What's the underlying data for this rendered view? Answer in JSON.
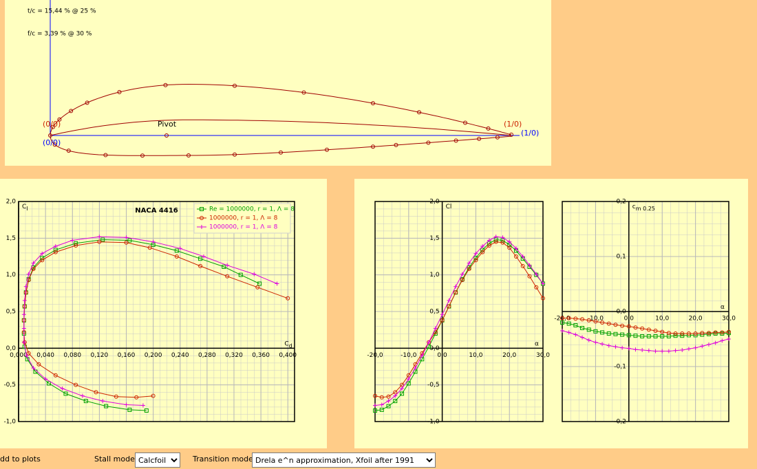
{
  "airfoil_panel": {
    "thickness_label": "t/c = 15,44 % @ 25 %",
    "camber_label": "f/c = 3,39 % @ 30 %",
    "leading_edge_label": "(0/0)",
    "leading_edge_label_2": "(0/0)",
    "trailing_edge_label": "(1/0)",
    "trailing_edge_label_2": "(1/0)",
    "pivot_label": "Pivot"
  },
  "chart_data": [
    {
      "type": "line",
      "title": "NACA 4416",
      "x_label": "C",
      "x_label_sub": "d",
      "y_label": "C",
      "y_label_sub": "l",
      "xlim": [
        0,
        0.41
      ],
      "ylim": [
        -1,
        2
      ],
      "xticks": [
        {
          "value": 0,
          "label": "0,000"
        },
        {
          "value": 0.04,
          "label": "0,040"
        },
        {
          "value": 0.08,
          "label": "0,080"
        },
        {
          "value": 0.12,
          "label": "0,120"
        },
        {
          "value": 0.16,
          "label": "0,160"
        },
        {
          "value": 0.2,
          "label": "0,200"
        },
        {
          "value": 0.24,
          "label": "0,240"
        },
        {
          "value": 0.28,
          "label": "0,280"
        },
        {
          "value": 0.32,
          "label": "0,320"
        },
        {
          "value": 0.36,
          "label": "0,360"
        },
        {
          "value": 0.4,
          "label": "0,400"
        }
      ],
      "yticks": [
        {
          "value": -1,
          "label": "-1,0"
        },
        {
          "value": -0.5,
          "label": "-0,5"
        },
        {
          "value": 0,
          "label": "0,0"
        },
        {
          "value": 0.5,
          "label": "0,5"
        },
        {
          "value": 1,
          "label": "1,0"
        },
        {
          "value": 1.5,
          "label": "1,5"
        },
        {
          "value": 2,
          "label": "2,0"
        }
      ],
      "grid": true,
      "legend": "upper right",
      "series": [
        {
          "name": "Re = 1000000, r = 1, Λ = 8",
          "color": "#00a000",
          "marker": "square",
          "x": [
            0.19,
            0.165,
            0.13,
            0.1,
            0.07,
            0.045,
            0.025,
            0.013,
            0.009,
            0.008,
            0.008,
            0.009,
            0.011,
            0.015,
            0.022,
            0.035,
            0.055,
            0.085,
            0.125,
            0.165,
            0.2,
            0.235,
            0.27,
            0.305,
            0.33,
            0.358
          ],
          "values": [
            -0.85,
            -0.84,
            -0.79,
            -0.72,
            -0.62,
            -0.48,
            -0.32,
            -0.15,
            0.02,
            0.2,
            0.38,
            0.57,
            0.76,
            0.94,
            1.1,
            1.23,
            1.34,
            1.43,
            1.48,
            1.47,
            1.41,
            1.33,
            1.22,
            1.11,
            1.0,
            0.88
          ]
        },
        {
          "name": "1000000, r = 1, Λ = 8",
          "color": "#cc2200",
          "marker": "circle",
          "x": [
            0.2,
            0.175,
            0.145,
            0.115,
            0.085,
            0.055,
            0.03,
            0.015,
            0.009,
            0.008,
            0.008,
            0.009,
            0.011,
            0.015,
            0.022,
            0.035,
            0.055,
            0.085,
            0.12,
            0.16,
            0.195,
            0.235,
            0.27,
            0.31,
            0.355,
            0.4
          ],
          "values": [
            -0.65,
            -0.67,
            -0.66,
            -0.6,
            -0.5,
            -0.37,
            -0.22,
            -0.07,
            0.08,
            0.22,
            0.38,
            0.57,
            0.76,
            0.93,
            1.08,
            1.2,
            1.31,
            1.4,
            1.45,
            1.44,
            1.37,
            1.25,
            1.12,
            0.98,
            0.83,
            0.68
          ]
        },
        {
          "name": "1000000, r = 1, Λ = 8",
          "color": "#dd00dd",
          "marker": "plus",
          "x": [
            0.185,
            0.16,
            0.125,
            0.095,
            0.065,
            0.04,
            0.022,
            0.012,
            0.008,
            0.008,
            0.008,
            0.009,
            0.011,
            0.015,
            0.022,
            0.035,
            0.055,
            0.08,
            0.12,
            0.16,
            0.2,
            0.24,
            0.275,
            0.31,
            0.35,
            0.384
          ],
          "values": [
            -0.78,
            -0.77,
            -0.72,
            -0.65,
            -0.55,
            -0.42,
            -0.27,
            -0.1,
            0.08,
            0.27,
            0.46,
            0.65,
            0.84,
            1.01,
            1.16,
            1.29,
            1.39,
            1.47,
            1.52,
            1.51,
            1.45,
            1.36,
            1.25,
            1.13,
            1.01,
            0.88
          ]
        }
      ]
    },
    {
      "type": "line",
      "x_label": "α",
      "y_label": "Cl",
      "xlim": [
        -20,
        30
      ],
      "ylim": [
        -1,
        2
      ],
      "xticks": [
        {
          "value": -20,
          "label": "-20,0"
        },
        {
          "value": -10,
          "label": "-10,0"
        },
        {
          "value": 0,
          "label": "0,0"
        },
        {
          "value": 10,
          "label": "10,0"
        },
        {
          "value": 20,
          "label": "20,0"
        },
        {
          "value": 30,
          "label": "30,0"
        }
      ],
      "yticks": [
        {
          "value": -1,
          "label": "-1,0"
        },
        {
          "value": -0.5,
          "label": "-0,5"
        },
        {
          "value": 0,
          "label": "0,0"
        },
        {
          "value": 0.5,
          "label": "0,5"
        },
        {
          "value": 1,
          "label": "1,0"
        },
        {
          "value": 1.5,
          "label": "1,5"
        },
        {
          "value": 2,
          "label": "2,0"
        }
      ],
      "grid": true,
      "x": [
        -20,
        -18,
        -16,
        -14,
        -12,
        -10,
        -8,
        -6,
        -4,
        -2,
        0,
        2,
        4,
        6,
        8,
        10,
        12,
        14,
        16,
        18,
        20,
        22,
        24,
        26,
        28,
        30
      ],
      "series": [
        {
          "color": "#00a000",
          "marker": "square",
          "values": [
            -0.85,
            -0.84,
            -0.79,
            -0.72,
            -0.62,
            -0.48,
            -0.32,
            -0.15,
            0.02,
            0.2,
            0.38,
            0.57,
            0.76,
            0.94,
            1.1,
            1.23,
            1.34,
            1.43,
            1.48,
            1.47,
            1.41,
            1.33,
            1.22,
            1.11,
            1.0,
            0.88
          ]
        },
        {
          "color": "#cc2200",
          "marker": "circle",
          "values": [
            -0.65,
            -0.67,
            -0.66,
            -0.6,
            -0.5,
            -0.37,
            -0.22,
            -0.07,
            0.08,
            0.22,
            0.38,
            0.57,
            0.76,
            0.93,
            1.08,
            1.2,
            1.31,
            1.4,
            1.45,
            1.44,
            1.37,
            1.25,
            1.12,
            0.98,
            0.83,
            0.68
          ]
        },
        {
          "color": "#dd00dd",
          "marker": "plus",
          "values": [
            -0.78,
            -0.77,
            -0.72,
            -0.65,
            -0.55,
            -0.42,
            -0.27,
            -0.1,
            0.08,
            0.27,
            0.46,
            0.65,
            0.84,
            1.01,
            1.16,
            1.29,
            1.39,
            1.47,
            1.52,
            1.51,
            1.45,
            1.36,
            1.25,
            1.13,
            1.01,
            0.88
          ]
        }
      ]
    },
    {
      "type": "line",
      "x_label": "α",
      "y_label": "c",
      "y_label_sub": "m 0.25",
      "xlim": [
        -20,
        30
      ],
      "ylim": [
        -0.2,
        0.2
      ],
      "xticks": [
        {
          "value": -20,
          "label": "-20,0"
        },
        {
          "value": -10,
          "label": "-10,0"
        },
        {
          "value": 0,
          "label": "0,0"
        },
        {
          "value": 10,
          "label": "10,0"
        },
        {
          "value": 20,
          "label": "20,0"
        },
        {
          "value": 30,
          "label": "30,0"
        }
      ],
      "yticks": [
        {
          "value": -0.2,
          "label": "-0,2"
        },
        {
          "value": -0.1,
          "label": "-0,1"
        },
        {
          "value": 0,
          "label": "0,0"
        },
        {
          "value": 0.1,
          "label": "0,1"
        },
        {
          "value": 0.2,
          "label": "0,2"
        }
      ],
      "grid": true,
      "x": [
        -20,
        -18,
        -16,
        -14,
        -12,
        -10,
        -8,
        -6,
        -4,
        -2,
        0,
        2,
        4,
        6,
        8,
        10,
        12,
        14,
        16,
        18,
        20,
        22,
        24,
        26,
        28,
        30
      ],
      "series": [
        {
          "color": "#00a000",
          "marker": "square",
          "values": [
            -0.02,
            -0.022,
            -0.025,
            -0.03,
            -0.033,
            -0.036,
            -0.038,
            -0.04,
            -0.041,
            -0.042,
            -0.043,
            -0.044,
            -0.045,
            -0.045,
            -0.045,
            -0.045,
            -0.045,
            -0.044,
            -0.044,
            -0.043,
            -0.043,
            -0.042,
            -0.041,
            -0.04,
            -0.04,
            -0.039
          ]
        },
        {
          "color": "#cc2200",
          "marker": "circle",
          "values": [
            -0.012,
            -0.012,
            -0.013,
            -0.014,
            -0.016,
            -0.018,
            -0.02,
            -0.022,
            -0.024,
            -0.026,
            -0.027,
            -0.029,
            -0.031,
            -0.033,
            -0.035,
            -0.037,
            -0.039,
            -0.04,
            -0.04,
            -0.04,
            -0.04,
            -0.039,
            -0.039,
            -0.038,
            -0.038,
            -0.037
          ]
        },
        {
          "color": "#dd00dd",
          "marker": "plus",
          "values": [
            -0.035,
            -0.038,
            -0.042,
            -0.047,
            -0.052,
            -0.056,
            -0.059,
            -0.062,
            -0.064,
            -0.066,
            -0.067,
            -0.069,
            -0.07,
            -0.071,
            -0.072,
            -0.072,
            -0.072,
            -0.071,
            -0.07,
            -0.068,
            -0.066,
            -0.063,
            -0.06,
            -0.057,
            -0.053,
            -0.05
          ]
        }
      ]
    }
  ],
  "toolbar": {
    "add_to_plots": "dd to plots",
    "stall_model_label": "Stall model:",
    "stall_model": "Calcfoil",
    "transition_model_label": "Transition model:",
    "transition_model": "Drela e^n approximation, Xfoil after 1991"
  }
}
